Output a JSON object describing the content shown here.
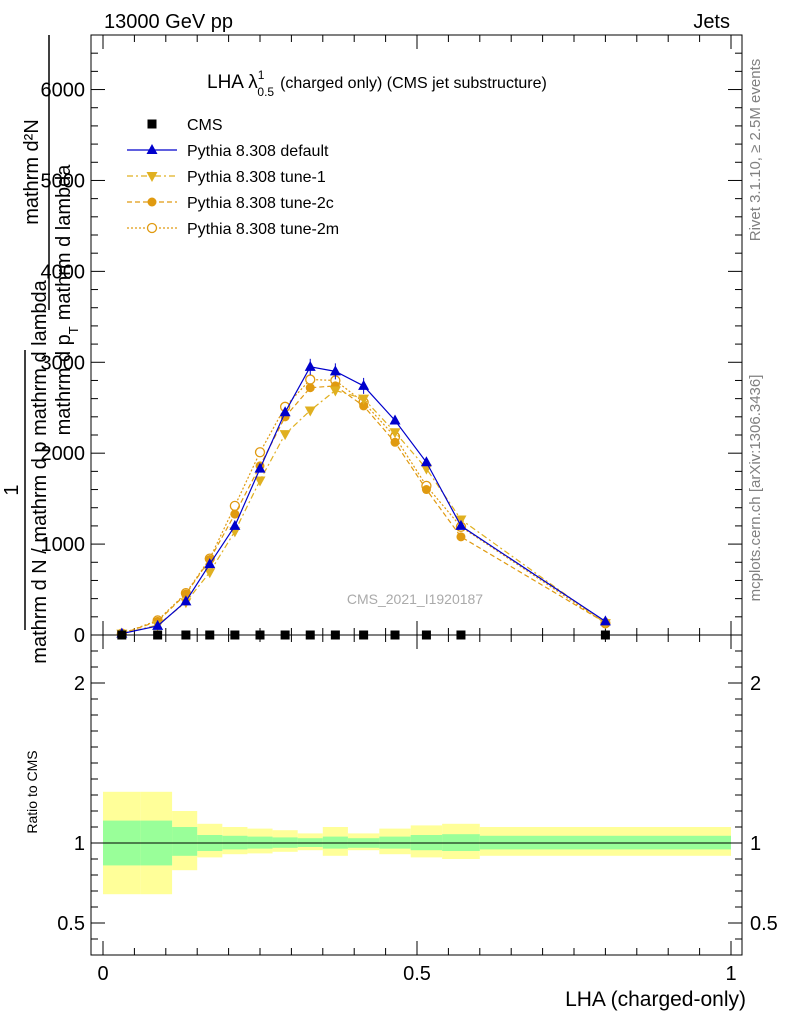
{
  "header": {
    "left": "13000 GeV pp",
    "right": "Jets"
  },
  "side_labels": {
    "rivet": "Rivet 3.1.10, ≥ 2.5M events",
    "mcplots": "mcplots.cern.ch [arXiv:1306.3436]"
  },
  "chart_data": [
    {
      "type": "line",
      "title_main": "LHA λ",
      "title_sup": "1",
      "title_sub": "0.5",
      "title_rest": "(charged only) (CMS jet substructure)",
      "watermark": "CMS_2021_I1920187",
      "ylabel_top": "mathrm d²N",
      "ylabel_bottom": "mathrm d N / mathrm d p_T mathrm d lambda",
      "ylabel_one": "1",
      "ylabel_frac_top": "mathrm d N",
      "ylabel_parts": {
        "numerator": "mathrm d²N",
        "denominator_a": "mathrm d p",
        "denominator_sub": "T",
        "denominator_b": "mathrm d lambda",
        "one": "1",
        "lower": "mathrm d N / mathrm d p mathrm d lambda"
      },
      "xlim": [
        0,
        1
      ],
      "ylim": [
        0,
        6600
      ],
      "yticks": [
        0,
        1000,
        2000,
        3000,
        4000,
        5000,
        6000
      ],
      "ytick_labels": [
        "0",
        "1000",
        "2000",
        "3000",
        "4000",
        "5000",
        "6000"
      ],
      "legend": [
        {
          "name": "CMS",
          "marker": "square",
          "color": "#000000",
          "dash": ""
        },
        {
          "name": "Pythia 8.308 default",
          "marker": "triangle-up",
          "color": "#0000cc",
          "dash": ""
        },
        {
          "name": "Pythia 8.308 tune-1",
          "marker": "triangle-down",
          "color": "#e0b020",
          "dash": "6,3,2,3"
        },
        {
          "name": "Pythia 8.308 tune-2c",
          "marker": "circle",
          "color": "#e09a10",
          "dash": "5,3"
        },
        {
          "name": "Pythia 8.308 tune-2m",
          "marker": "circle-open",
          "color": "#e09a10",
          "dash": "2,2"
        }
      ],
      "x": [
        0.03,
        0.087,
        0.132,
        0.17,
        0.21,
        0.25,
        0.29,
        0.33,
        0.37,
        0.415,
        0.465,
        0.515,
        0.57,
        0.8
      ],
      "series": [
        {
          "name": "CMS",
          "values": [
            0,
            0,
            0,
            0,
            0,
            0,
            0,
            0,
            0,
            0,
            0,
            0,
            0,
            0
          ]
        },
        {
          "name": "Pythia 8.308 default",
          "values": [
            15,
            100,
            370,
            780,
            1200,
            1830,
            2450,
            2950,
            2900,
            2740,
            2360,
            1900,
            1200,
            150
          ]
        },
        {
          "name": "Pythia 8.308 tune-1",
          "values": [
            15,
            110,
            360,
            690,
            1140,
            1700,
            2210,
            2470,
            2690,
            2600,
            2230,
            1830,
            1270,
            130
          ]
        },
        {
          "name": "Pythia 8.308 tune-2c",
          "values": [
            15,
            150,
            450,
            830,
            1330,
            1860,
            2400,
            2720,
            2740,
            2520,
            2120,
            1600,
            1080,
            135
          ]
        },
        {
          "name": "Pythia 8.308 tune-2m",
          "values": [
            15,
            160,
            460,
            840,
            1420,
            2010,
            2510,
            2810,
            2800,
            2560,
            2180,
            1640,
            1190,
            130
          ]
        }
      ]
    },
    {
      "type": "area",
      "ylabel": "Ratio to CMS",
      "xlabel": "LHA (charged-only)",
      "xlim": [
        0,
        1
      ],
      "ylim": [
        0.3,
        2.3
      ],
      "yticks": [
        0.5,
        1,
        2
      ],
      "ytick_labels": [
        "0.5",
        "1",
        "2"
      ],
      "xticks": [
        0,
        0.5,
        1
      ],
      "xtick_labels": [
        "0",
        "0.5",
        "1"
      ],
      "bin_edges": [
        0,
        0.06,
        0.11,
        0.15,
        0.19,
        0.23,
        0.27,
        0.31,
        0.35,
        0.39,
        0.44,
        0.49,
        0.54,
        0.6,
        1.0
      ],
      "band_green_low": [
        0.86,
        0.86,
        0.92,
        0.95,
        0.96,
        0.965,
        0.97,
        0.975,
        0.965,
        0.97,
        0.965,
        0.955,
        0.95,
        0.96,
        0.88
      ],
      "band_green_high": [
        1.14,
        1.14,
        1.1,
        1.05,
        1.045,
        1.04,
        1.035,
        1.03,
        1.04,
        1.03,
        1.04,
        1.05,
        1.055,
        1.045,
        1.1
      ],
      "band_yellow_low": [
        0.68,
        0.68,
        0.83,
        0.91,
        0.93,
        0.935,
        0.945,
        0.955,
        0.92,
        0.955,
        0.93,
        0.91,
        0.9,
        0.92,
        0.73
      ],
      "band_yellow_high": [
        1.32,
        1.32,
        1.2,
        1.12,
        1.1,
        1.09,
        1.08,
        1.06,
        1.1,
        1.06,
        1.09,
        1.11,
        1.12,
        1.1,
        1.27
      ],
      "reference_line": 1
    }
  ]
}
